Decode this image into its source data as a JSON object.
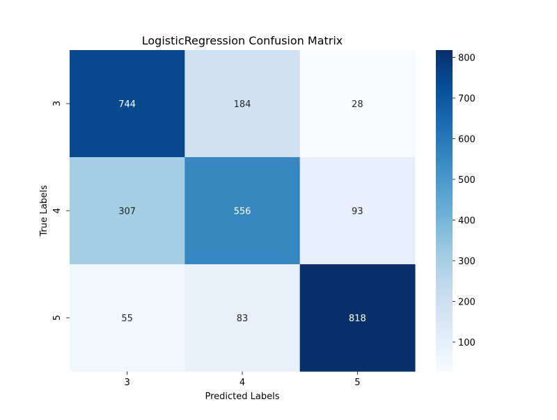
{
  "chart_data": {
    "type": "heatmap",
    "title": "LogisticRegression Confusion Matrix",
    "xlabel": "Predicted Labels",
    "ylabel": "True Labels",
    "x_categories": [
      "3",
      "4",
      "5"
    ],
    "y_categories": [
      "3",
      "4",
      "5"
    ],
    "values": [
      [
        744,
        184,
        28
      ],
      [
        307,
        556,
        93
      ],
      [
        55,
        83,
        818
      ]
    ],
    "colormap": "Blues",
    "colorbar": {
      "range": [
        28,
        818
      ],
      "ticks": [
        100,
        200,
        300,
        400,
        500,
        600,
        700,
        800
      ]
    }
  }
}
